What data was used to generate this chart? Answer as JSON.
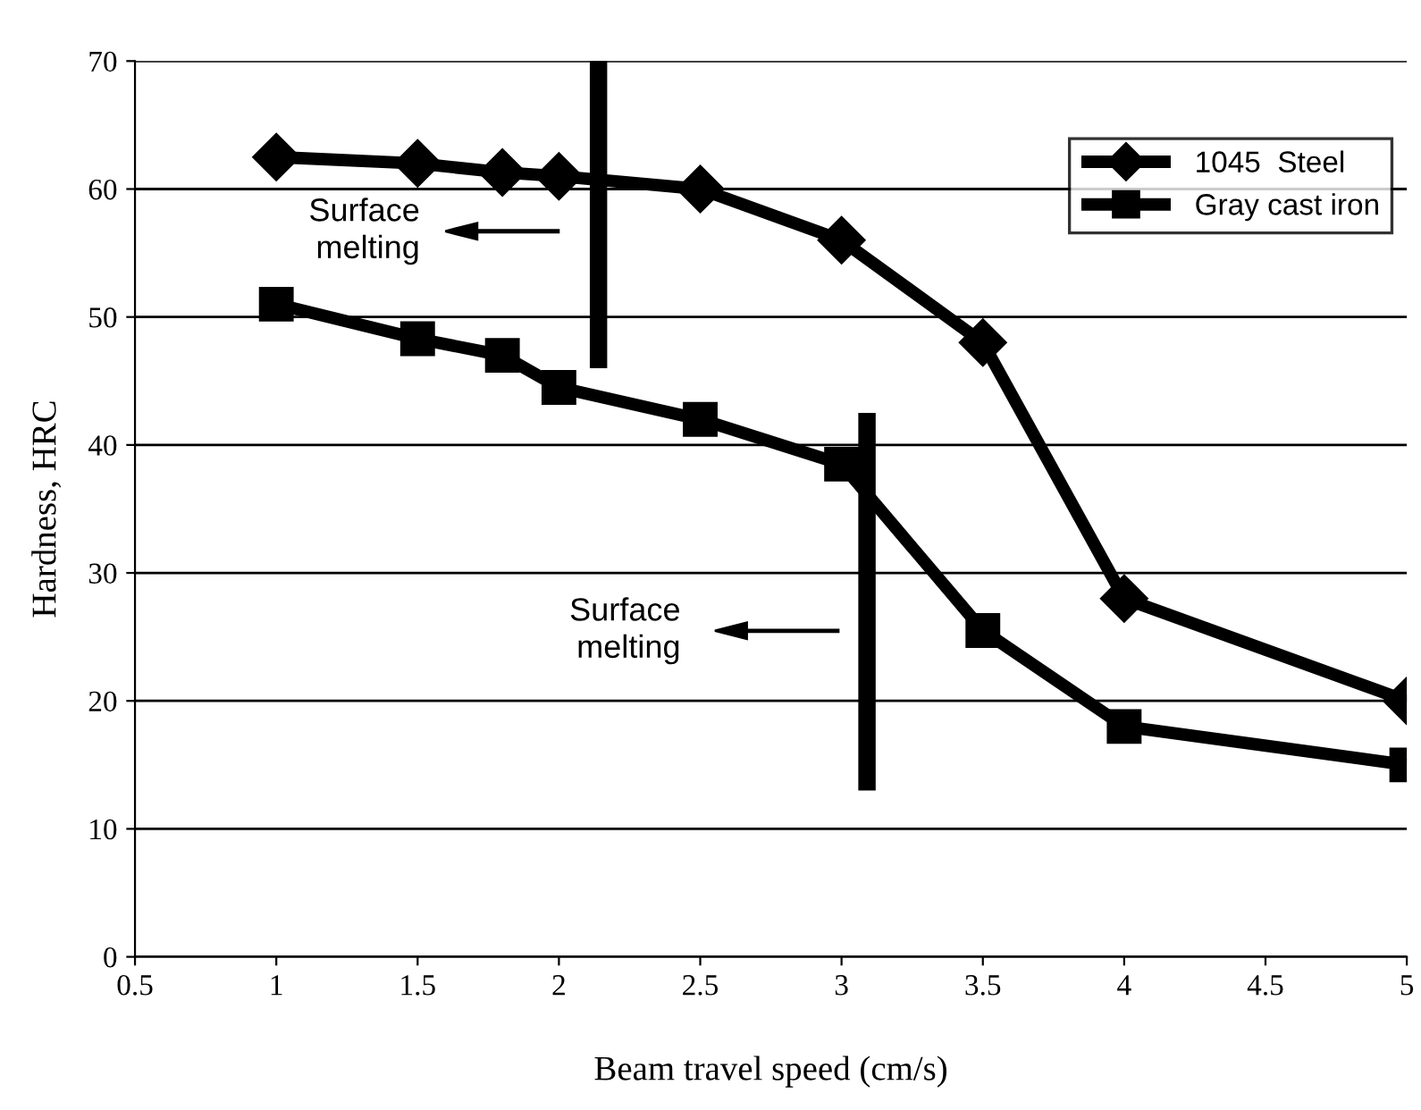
{
  "chart_data": {
    "type": "line",
    "xlabel": "Beam travel speed (cm/s)",
    "ylabel": "Hardness, HRC",
    "xlim": [
      0.5,
      5
    ],
    "xticks": [
      0.5,
      1,
      1.5,
      2,
      2.5,
      3,
      3.5,
      4,
      4.5,
      5
    ],
    "ylim": [
      0,
      70
    ],
    "yticks": [
      0,
      10,
      20,
      30,
      40,
      50,
      60,
      70
    ],
    "grid": "y",
    "legend": "top right",
    "series": [
      {
        "name": "1045  Steel",
        "color": "#000000",
        "marker": "diamond",
        "x": [
          1,
          1.5,
          1.8,
          2,
          2.5,
          3,
          3.5,
          4,
          5
        ],
        "values": [
          62.5,
          62,
          61.3,
          61,
          60,
          56,
          48,
          28,
          20
        ]
      },
      {
        "name": "Gray cast iron",
        "color": "#000000",
        "marker": "square",
        "x": [
          1,
          1.5,
          1.8,
          2,
          2.5,
          3,
          3.5,
          4,
          5
        ],
        "values": [
          51,
          48.3,
          47,
          44.5,
          42,
          38.5,
          25.5,
          18,
          15
        ]
      },
      {
        "color": "#000000",
        "marker": "none",
        "x": [
          2.14,
          2.14
        ],
        "values": [
          46,
          70
        ]
      },
      {
        "color": "#000000",
        "marker": "none",
        "x": [
          3.09,
          3.09
        ],
        "values": [
          13,
          42.5
        ]
      }
    ],
    "annotations": [
      "Surface\nmelting",
      "Surface\nmelting"
    ]
  }
}
